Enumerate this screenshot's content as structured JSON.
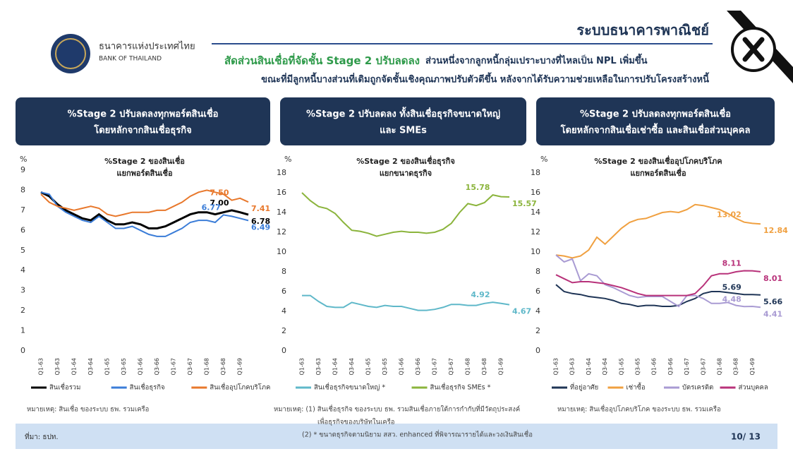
{
  "header": {
    "org_th": "ธนาคารแห่งประเทศไทย",
    "org_en": "BANK OF THAILAND",
    "section": "ระบบธนาคารพาณิชย์",
    "headline_highlight": "สัดส่วนสินเชื่อที่จัดชั้น Stage 2 ปรับลดลง",
    "headline_rest": "ส่วนหนึ่งจากลูกหนี้กลุ่มเปราะบางที่ไหลเป็น NPL เพิ่มขึ้น",
    "headline_line2": "ขณะที่มีลูกหนี้บางส่วนที่เดิมถูกจัดชั้นเชิงคุณภาพปรับตัวดีขึ้น หลังจากได้รับความช่วยเหลือในการปรับโครงสร้างหนี้"
  },
  "footer": {
    "source": "ที่มา: ธปท.",
    "page": "10/ 13"
  },
  "chart_data": [
    {
      "type": "line",
      "panel_title": [
        "%Stage 2 ปรับลดลงทุกพอร์ตสินเชื่อ",
        "โดยหลักจากสินเชื่อธุรกิจ"
      ],
      "title": "%Stage 2 ของสินเชื่อ",
      "subtitle": "แยกพอร์ตสินเชื่อ",
      "y_label": "%",
      "note": [
        "หมายเหตุ: สินเชื่อ ของระบบ ธพ. รวมเครือ"
      ],
      "categories": [
        "Q1-63",
        null,
        "Q3-63",
        null,
        "Q1-64",
        null,
        "Q3-64",
        null,
        "Q1-65",
        null,
        "Q3-65",
        null,
        "Q1-66",
        null,
        "Q3-66",
        null,
        "Q1-67",
        null,
        "Q3-67",
        null,
        "Q1-68",
        null,
        "Q3-68",
        null,
        "Q1-69",
        null
      ],
      "ylim": [
        0,
        9
      ],
      "yticks": [
        0,
        1,
        2,
        3,
        4,
        5,
        6,
        7,
        8,
        9
      ],
      "series": [
        {
          "name": "สินเชื่อรวม",
          "color": "#000000",
          "values": [
            7.9,
            7.7,
            7.3,
            7.0,
            6.8,
            6.6,
            6.5,
            6.8,
            6.5,
            6.3,
            6.3,
            6.4,
            6.3,
            6.1,
            6.1,
            6.2,
            6.4,
            6.6,
            6.8,
            6.9,
            6.9,
            6.8,
            6.9,
            7.0,
            6.9,
            6.78
          ],
          "value_labels": [
            null,
            null,
            null,
            null,
            null,
            null,
            null,
            null,
            null,
            null,
            null,
            null,
            null,
            null,
            null,
            null,
            null,
            null,
            null,
            null,
            null,
            null,
            null,
            "7.00",
            null,
            "6.78"
          ]
        },
        {
          "name": "สินเชื่อธุรกิจ",
          "color": "#3b7dd8",
          "values": [
            7.9,
            7.8,
            7.2,
            6.9,
            6.7,
            6.5,
            6.4,
            6.7,
            6.4,
            6.1,
            6.1,
            6.2,
            6.0,
            5.8,
            5.7,
            5.7,
            5.9,
            6.1,
            6.4,
            6.5,
            6.5,
            6.4,
            6.77,
            6.7,
            6.6,
            6.49
          ],
          "value_labels": [
            null,
            null,
            null,
            null,
            null,
            null,
            null,
            null,
            null,
            null,
            null,
            null,
            null,
            null,
            null,
            null,
            null,
            null,
            null,
            null,
            null,
            null,
            "6.77",
            null,
            null,
            "6.49"
          ]
        },
        {
          "name": "สินเชื่ออุปโภคบริโภค",
          "color": "#e8782c",
          "values": [
            7.8,
            7.4,
            7.2,
            7.1,
            7.0,
            7.1,
            7.2,
            7.1,
            6.8,
            6.7,
            6.8,
            6.9,
            6.9,
            6.9,
            7.0,
            7.0,
            7.2,
            7.4,
            7.7,
            7.9,
            8.0,
            7.9,
            7.8,
            7.5,
            7.6,
            7.41
          ],
          "value_labels": [
            null,
            null,
            null,
            null,
            null,
            null,
            null,
            null,
            null,
            null,
            null,
            null,
            null,
            null,
            null,
            null,
            null,
            null,
            null,
            null,
            null,
            null,
            null,
            "7.50",
            null,
            "7.41"
          ]
        }
      ]
    },
    {
      "type": "line",
      "panel_title": [
        "%Stage 2 ปรับลดลง ทั้งสินเชื่อธุรกิจขนาดใหญ่",
        "และ SMEs"
      ],
      "title": "%Stage 2 ของสินเชื่อธุรกิจ",
      "subtitle": "แยกขนาดธุรกิจ",
      "y_label": "%",
      "note": [
        "หมายเหตุ: (1) สินเชื่อธุรกิจ ของระบบ ธพ. รวมสินเชื่อภายใต้การกำกับที่มีวัตถุประสงค์",
        "เพื่อธุรกิจของบริษัทในเครือ",
        "(2) * ขนาดธุรกิจตามนิยาม สสว. enhanced ที่พิจารณารายได้และวงเงินสินเชื่อ"
      ],
      "categories": [
        "Q1-63",
        null,
        "Q3-63",
        null,
        "Q1-64",
        null,
        "Q3-64",
        null,
        "Q1-65",
        null,
        "Q3-65",
        null,
        "Q1-66",
        null,
        "Q3-66",
        null,
        "Q1-67",
        null,
        "Q3-67",
        null,
        "Q1-68",
        null,
        "Q3-68",
        null,
        "Q1-69",
        null
      ],
      "ylim": [
        0,
        18
      ],
      "yticks": [
        0,
        2,
        4,
        6,
        8,
        10,
        12,
        14,
        16,
        18
      ],
      "series": [
        {
          "name": "สินเชื่อธุรกิจขนาดใหญ่ *",
          "color": "#5fb8c9",
          "values": [
            5.6,
            5.6,
            5.0,
            4.5,
            4.4,
            4.4,
            4.9,
            4.7,
            4.5,
            4.4,
            4.6,
            4.5,
            4.5,
            4.3,
            4.1,
            4.1,
            4.2,
            4.4,
            4.7,
            4.7,
            4.6,
            4.6,
            4.8,
            4.92,
            4.8,
            4.67
          ],
          "value_labels": [
            null,
            null,
            null,
            null,
            null,
            null,
            null,
            null,
            null,
            null,
            null,
            null,
            null,
            null,
            null,
            null,
            null,
            null,
            null,
            null,
            null,
            null,
            null,
            "4.92",
            null,
            "4.67"
          ]
        },
        {
          "name": "สินเชื่อธุรกิจ SMEs *",
          "color": "#8bb43c",
          "values": [
            16.0,
            15.2,
            14.6,
            14.4,
            13.9,
            13.0,
            12.2,
            12.1,
            11.9,
            11.6,
            11.8,
            12.0,
            12.1,
            12.0,
            12.0,
            11.9,
            12.0,
            12.3,
            12.9,
            14.0,
            14.9,
            14.7,
            15.0,
            15.78,
            15.6,
            15.57
          ],
          "value_labels": [
            null,
            null,
            null,
            null,
            null,
            null,
            null,
            null,
            null,
            null,
            null,
            null,
            null,
            null,
            null,
            null,
            null,
            null,
            null,
            null,
            null,
            null,
            null,
            "15.78",
            null,
            "15.57"
          ]
        }
      ]
    },
    {
      "type": "line",
      "panel_title": [
        "%Stage 2 ปรับลดลงทุกพอร์ตสินเชื่อ",
        "โดยหลักจากสินเชื่อเช่าซื้อ และสินเชื่อส่วนบุคคล"
      ],
      "title": "%Stage 2 ของสินเชื่ออุปโภคบริโภค",
      "subtitle": "แยกพอร์ตสินเชื่อ",
      "y_label": "%",
      "note": [
        "หมายเหตุ: สินเชื่ออุปโภคบริโภค ของระบบ ธพ. รวมเครือ"
      ],
      "categories": [
        "Q1-63",
        null,
        "Q3-63",
        null,
        "Q1-64",
        null,
        "Q3-64",
        null,
        "Q1-65",
        null,
        "Q3-65",
        null,
        "Q1-66",
        null,
        "Q3-66",
        null,
        "Q1-67",
        null,
        "Q3-67",
        null,
        "Q1-68",
        null,
        "Q3-68",
        null,
        "Q1-69",
        null
      ],
      "ylim": [
        0,
        18
      ],
      "yticks": [
        0,
        2,
        4,
        6,
        8,
        10,
        12,
        14,
        16,
        18
      ],
      "series": [
        {
          "name": "ที่อยู่อาศัย",
          "color": "#1f3556",
          "values": [
            6.7,
            6.0,
            5.8,
            5.7,
            5.5,
            5.4,
            5.3,
            5.1,
            4.8,
            4.7,
            4.5,
            4.6,
            4.6,
            4.5,
            4.5,
            4.6,
            5.0,
            5.3,
            5.8,
            6.0,
            6.0,
            5.9,
            5.8,
            5.69,
            5.7,
            5.66
          ],
          "value_labels": [
            null,
            null,
            null,
            null,
            null,
            null,
            null,
            null,
            null,
            null,
            null,
            null,
            null,
            null,
            null,
            null,
            null,
            null,
            null,
            null,
            null,
            null,
            null,
            "5.69",
            null,
            "5.66"
          ]
        },
        {
          "name": "เช่าซื้อ",
          "color": "#f0a040",
          "values": [
            9.7,
            9.6,
            9.4,
            9.6,
            10.2,
            11.5,
            10.8,
            11.6,
            12.4,
            13.0,
            13.3,
            13.4,
            13.7,
            14.0,
            14.1,
            14.0,
            14.3,
            14.8,
            14.7,
            14.5,
            14.3,
            13.9,
            13.4,
            13.02,
            12.9,
            12.84
          ],
          "value_labels": [
            null,
            null,
            null,
            null,
            null,
            null,
            null,
            null,
            null,
            null,
            null,
            null,
            null,
            null,
            null,
            null,
            null,
            null,
            null,
            null,
            null,
            null,
            null,
            "13.02",
            null,
            "12.84"
          ]
        },
        {
          "name": "บัตรเครดิต",
          "color": "#a99bd3",
          "values": [
            9.7,
            9.0,
            9.3,
            7.1,
            7.8,
            7.6,
            6.7,
            6.4,
            6.0,
            5.6,
            5.4,
            5.5,
            5.5,
            5.5,
            5.0,
            4.5,
            5.6,
            5.6,
            5.3,
            4.8,
            4.8,
            4.9,
            4.6,
            4.48,
            4.5,
            4.41
          ],
          "value_labels": [
            null,
            null,
            null,
            null,
            null,
            null,
            null,
            null,
            null,
            null,
            null,
            null,
            null,
            null,
            null,
            null,
            null,
            null,
            null,
            null,
            null,
            null,
            null,
            "4.48",
            null,
            "4.41"
          ]
        },
        {
          "name": "ส่วนบุคคล",
          "color": "#b8327a",
          "values": [
            7.7,
            7.3,
            6.9,
            7.0,
            7.0,
            6.9,
            6.8,
            6.6,
            6.4,
            6.1,
            5.8,
            5.6,
            5.6,
            5.6,
            5.6,
            5.6,
            5.6,
            5.8,
            6.6,
            7.6,
            7.8,
            7.8,
            8.0,
            8.11,
            8.1,
            8.01
          ],
          "value_labels": [
            null,
            null,
            null,
            null,
            null,
            null,
            null,
            null,
            null,
            null,
            null,
            null,
            null,
            null,
            null,
            null,
            null,
            null,
            null,
            null,
            null,
            null,
            null,
            "8.11",
            null,
            "8.01"
          ]
        }
      ]
    }
  ]
}
